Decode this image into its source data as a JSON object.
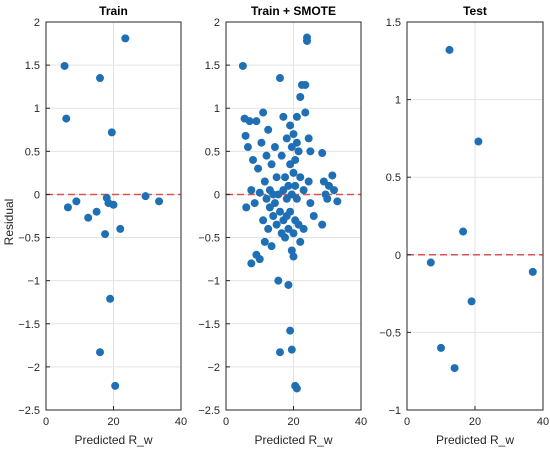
{
  "figure": {
    "ylabel": "Residual"
  },
  "colors": {
    "point": "#1f6fb4",
    "zero_line": "#d9534f",
    "grid": "#e3e3e3",
    "axis": "#262626"
  },
  "chart_data": [
    {
      "type": "scatter",
      "title": "Train",
      "xlabel": "Predicted R_w",
      "ylabel": "Residual",
      "xlim": [
        0,
        40
      ],
      "ylim": [
        -2.5,
        2
      ],
      "xticks": [
        0,
        20,
        40
      ],
      "yticks": [
        -2.5,
        -2,
        -1.5,
        -1,
        -0.5,
        0,
        0.5,
        1,
        1.5,
        2
      ],
      "grid": true,
      "reference_line": {
        "y": 0,
        "style": "dashed"
      },
      "points": [
        {
          "x": 5.5,
          "y": 1.49
        },
        {
          "x": 6.0,
          "y": 0.88
        },
        {
          "x": 6.5,
          "y": -0.15
        },
        {
          "x": 9.0,
          "y": -0.08
        },
        {
          "x": 12.5,
          "y": -0.27
        },
        {
          "x": 15.0,
          "y": -0.2
        },
        {
          "x": 16.0,
          "y": 1.35
        },
        {
          "x": 16.0,
          "y": -1.83
        },
        {
          "x": 17.5,
          "y": -0.46
        },
        {
          "x": 18.0,
          "y": -0.04
        },
        {
          "x": 18.5,
          "y": -0.1
        },
        {
          "x": 19.0,
          "y": -1.21
        },
        {
          "x": 19.5,
          "y": 0.72
        },
        {
          "x": 20.0,
          "y": -0.12
        },
        {
          "x": 20.5,
          "y": -2.22
        },
        {
          "x": 22.0,
          "y": -0.4
        },
        {
          "x": 23.5,
          "y": 1.81
        },
        {
          "x": 29.5,
          "y": -0.02
        },
        {
          "x": 33.5,
          "y": -0.08
        }
      ]
    },
    {
      "type": "scatter",
      "title": "Train + SMOTE",
      "xlabel": "Predicted R_w",
      "ylabel": "",
      "xlim": [
        0,
        40
      ],
      "ylim": [
        -2.5,
        2
      ],
      "xticks": [
        0,
        20,
        40
      ],
      "yticks": [
        -2.5,
        -2,
        -1.5,
        -1,
        -0.5,
        0,
        0.5,
        1,
        1.5,
        2
      ],
      "grid": true,
      "reference_line": {
        "y": 0,
        "style": "dashed"
      },
      "points": [
        {
          "x": 5.0,
          "y": 1.49
        },
        {
          "x": 5.5,
          "y": 0.88
        },
        {
          "x": 5.8,
          "y": 0.68
        },
        {
          "x": 6.0,
          "y": -0.15
        },
        {
          "x": 6.5,
          "y": 0.55
        },
        {
          "x": 7.0,
          "y": 0.85
        },
        {
          "x": 7.5,
          "y": 0.05
        },
        {
          "x": 7.5,
          "y": -0.8
        },
        {
          "x": 8.0,
          "y": 0.4
        },
        {
          "x": 8.5,
          "y": -0.1
        },
        {
          "x": 9.0,
          "y": 0.85
        },
        {
          "x": 9.0,
          "y": -0.7
        },
        {
          "x": 9.5,
          "y": 0.3
        },
        {
          "x": 10.0,
          "y": -0.75
        },
        {
          "x": 10.0,
          "y": 0.02
        },
        {
          "x": 10.5,
          "y": 0.6
        },
        {
          "x": 11.0,
          "y": -0.3
        },
        {
          "x": 11.0,
          "y": 0.95
        },
        {
          "x": 11.5,
          "y": 0.15
        },
        {
          "x": 11.5,
          "y": -0.55
        },
        {
          "x": 12.0,
          "y": 0.45
        },
        {
          "x": 12.0,
          "y": -0.05
        },
        {
          "x": 12.5,
          "y": 0.75
        },
        {
          "x": 12.5,
          "y": -0.4
        },
        {
          "x": 13.0,
          "y": 0.05
        },
        {
          "x": 13.0,
          "y": -0.15
        },
        {
          "x": 13.5,
          "y": 0.35
        },
        {
          "x": 13.5,
          "y": -0.6
        },
        {
          "x": 14.0,
          "y": 0.0
        },
        {
          "x": 14.0,
          "y": -0.25
        },
        {
          "x": 14.5,
          "y": 0.55
        },
        {
          "x": 14.5,
          "y": -0.1
        },
        {
          "x": 15.0,
          "y": 0.2
        },
        {
          "x": 15.0,
          "y": -0.35
        },
        {
          "x": 15.5,
          "y": 0.0
        },
        {
          "x": 15.5,
          "y": -1.0
        },
        {
          "x": 16.0,
          "y": 1.35
        },
        {
          "x": 16.0,
          "y": -0.2
        },
        {
          "x": 16.0,
          "y": -1.83
        },
        {
          "x": 16.5,
          "y": 0.45
        },
        {
          "x": 16.5,
          "y": -0.45
        },
        {
          "x": 17.0,
          "y": 0.05
        },
        {
          "x": 17.0,
          "y": -0.3
        },
        {
          "x": 17.0,
          "y": 0.9
        },
        {
          "x": 17.5,
          "y": -0.5
        },
        {
          "x": 17.5,
          "y": 0.2
        },
        {
          "x": 18.0,
          "y": -0.05
        },
        {
          "x": 18.0,
          "y": -0.25
        },
        {
          "x": 18.0,
          "y": 0.65
        },
        {
          "x": 18.5,
          "y": -1.05
        },
        {
          "x": 18.5,
          "y": -0.4
        },
        {
          "x": 18.5,
          "y": 0.1
        },
        {
          "x": 19.0,
          "y": -1.58
        },
        {
          "x": 19.0,
          "y": 0.8
        },
        {
          "x": 19.0,
          "y": -0.2
        },
        {
          "x": 19.0,
          "y": 0.35
        },
        {
          "x": 19.5,
          "y": 0.55
        },
        {
          "x": 19.5,
          "y": -0.65
        },
        {
          "x": 19.5,
          "y": -1.8
        },
        {
          "x": 19.5,
          "y": 0.0
        },
        {
          "x": 20.0,
          "y": 0.7
        },
        {
          "x": 20.0,
          "y": 0.25
        },
        {
          "x": 20.0,
          "y": -0.45
        },
        {
          "x": 20.0,
          "y": -0.72
        },
        {
          "x": 20.5,
          "y": -2.22
        },
        {
          "x": 20.5,
          "y": 0.4
        },
        {
          "x": 20.5,
          "y": 0.1
        },
        {
          "x": 20.5,
          "y": -0.3
        },
        {
          "x": 21.0,
          "y": -2.25
        },
        {
          "x": 21.0,
          "y": 0.6
        },
        {
          "x": 21.0,
          "y": -0.05
        },
        {
          "x": 21.0,
          "y": 0.9
        },
        {
          "x": 21.5,
          "y": 0.5
        },
        {
          "x": 21.5,
          "y": -0.35
        },
        {
          "x": 22.0,
          "y": 1.13
        },
        {
          "x": 22.0,
          "y": 0.2
        },
        {
          "x": 22.0,
          "y": -0.55
        },
        {
          "x": 22.5,
          "y": 1.27
        },
        {
          "x": 23.0,
          "y": 0.05
        },
        {
          "x": 23.0,
          "y": -0.4
        },
        {
          "x": 23.5,
          "y": 1.27
        },
        {
          "x": 23.5,
          "y": 0.95
        },
        {
          "x": 24.0,
          "y": 1.78
        },
        {
          "x": 24.0,
          "y": 1.82
        },
        {
          "x": 24.5,
          "y": 0.65
        },
        {
          "x": 24.5,
          "y": 0.15
        },
        {
          "x": 25.0,
          "y": -0.1
        },
        {
          "x": 25.0,
          "y": 0.5
        },
        {
          "x": 26.0,
          "y": -0.25
        },
        {
          "x": 28.5,
          "y": 0.48
        },
        {
          "x": 28.5,
          "y": -0.35
        },
        {
          "x": 29.0,
          "y": 0.15
        },
        {
          "x": 29.5,
          "y": 0.0
        },
        {
          "x": 30.0,
          "y": -0.05
        },
        {
          "x": 30.5,
          "y": 0.1
        },
        {
          "x": 31.5,
          "y": 0.22
        },
        {
          "x": 32.0,
          "y": 0.05
        },
        {
          "x": 33.0,
          "y": -0.08
        }
      ]
    },
    {
      "type": "scatter",
      "title": "Test",
      "xlabel": "Predicted R_w",
      "ylabel": "",
      "xlim": [
        0,
        40
      ],
      "ylim": [
        -1,
        1.5
      ],
      "xticks": [
        0,
        20,
        40
      ],
      "yticks": [
        -1,
        -0.5,
        0,
        0.5,
        1,
        1.5
      ],
      "grid": true,
      "reference_line": {
        "y": 0,
        "style": "dashed"
      },
      "points": [
        {
          "x": 7.0,
          "y": -0.05
        },
        {
          "x": 10.0,
          "y": -0.6
        },
        {
          "x": 12.5,
          "y": 1.32
        },
        {
          "x": 14.0,
          "y": -0.73
        },
        {
          "x": 16.5,
          "y": 0.15
        },
        {
          "x": 19.0,
          "y": -0.3
        },
        {
          "x": 21.0,
          "y": 0.73
        },
        {
          "x": 37.0,
          "y": -0.11
        }
      ]
    }
  ]
}
